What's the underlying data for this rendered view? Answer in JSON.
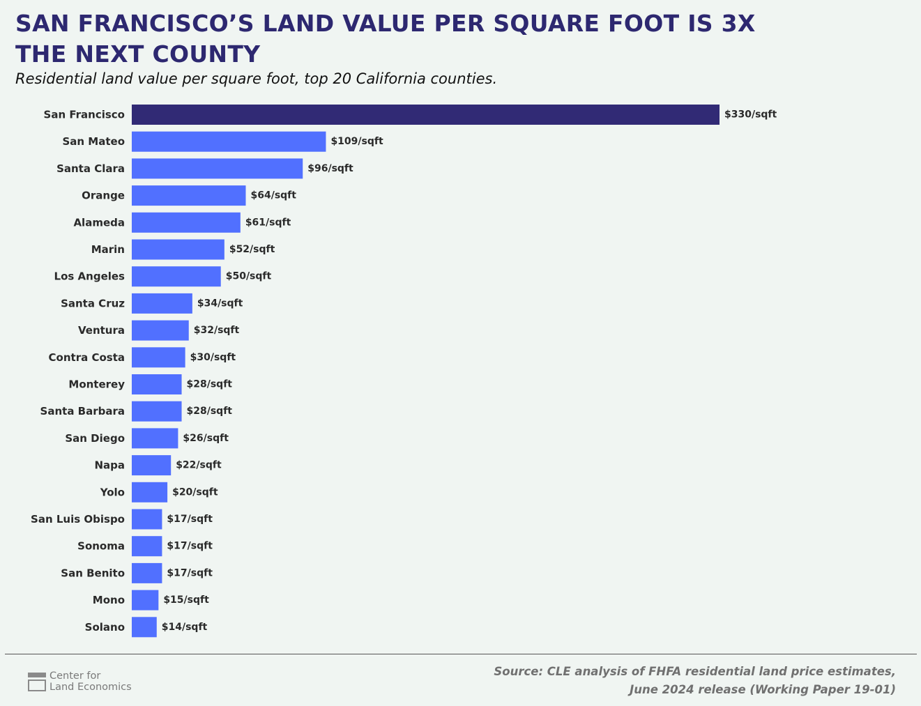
{
  "title": "SAN FRANCISCO’S LAND VALUE PER SQUARE FOOT IS 3X THE NEXT COUNTY",
  "subtitle": "Residential land value per square foot, top 20 California counties.",
  "colors": {
    "highlight": "#312a75",
    "bar": "#5170ff",
    "background": "#f0f5f2"
  },
  "chart_data": {
    "type": "bar",
    "orientation": "horizontal",
    "categories": [
      "San Francisco",
      "San Mateo",
      "Santa Clara",
      "Orange",
      "Alameda",
      "Marin",
      "Los Angeles",
      "Santa Cruz",
      "Ventura",
      "Contra Costa",
      "Monterey",
      "Santa Barbara",
      "San Diego",
      "Napa",
      "Yolo",
      "San Luis Obispo",
      "Sonoma",
      "San Benito",
      "Mono",
      "Solano"
    ],
    "values": [
      330,
      109,
      96,
      64,
      61,
      52,
      50,
      34,
      32,
      30,
      28,
      28,
      26,
      22,
      20,
      17,
      17,
      17,
      15,
      14
    ],
    "value_labels": [
      "$330/sqft",
      "$109/sqft",
      "$96/sqft",
      "$64/sqft",
      "$61/sqft",
      "$52/sqft",
      "$50/sqft",
      "$34/sqft",
      "$32/sqft",
      "$30/sqft",
      "$28/sqft",
      "$28/sqft",
      "$26/sqft",
      "$22/sqft",
      "$20/sqft",
      "$17/sqft",
      "$17/sqft",
      "$17/sqft",
      "$15/sqft",
      "$14/sqft"
    ],
    "highlighted_category": "San Francisco",
    "xlim": [
      0,
      330
    ],
    "grid": false,
    "legend": "none"
  },
  "footer": {
    "logo_line1": "Center for",
    "logo_line2": "Land Economics",
    "source_line1": "Source: CLE analysis of FHFA residential land price estimates,",
    "source_line2": "June 2024 release (Working Paper 19-01)"
  }
}
